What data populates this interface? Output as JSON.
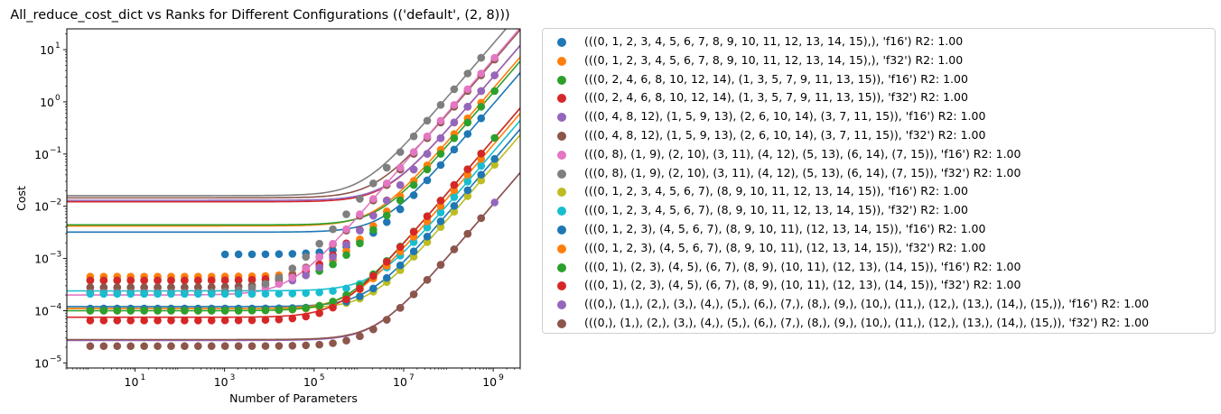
{
  "chart_data": {
    "type": "scatter",
    "title": "All_reduce_cost_dict vs Ranks for Different Configurations (('default', (2, 8)))",
    "xlabel": "Number of Parameters",
    "ylabel": "Cost",
    "xscale": "log",
    "yscale": "log",
    "xlim": [
      0.3,
      4000000000
    ],
    "ylim": [
      8e-06,
      25
    ],
    "x_ticks": [
      {
        "value": 10,
        "base": "10",
        "exp": "1"
      },
      {
        "value": 1000,
        "base": "10",
        "exp": "3"
      },
      {
        "value": 100000,
        "base": "10",
        "exp": "5"
      },
      {
        "value": 10000000,
        "base": "10",
        "exp": "7"
      },
      {
        "value": 1000000000,
        "base": "10",
        "exp": "9"
      }
    ],
    "y_ticks": [
      {
        "value": 1e-05,
        "base": "10",
        "exp": "−5"
      },
      {
        "value": 0.0001,
        "base": "10",
        "exp": "−4"
      },
      {
        "value": 0.001,
        "base": "10",
        "exp": "−3"
      },
      {
        "value": 0.01,
        "base": "10",
        "exp": "−2"
      },
      {
        "value": 0.1,
        "base": "10",
        "exp": "−1"
      },
      {
        "value": 1,
        "base": "10",
        "exp": "0"
      },
      {
        "value": 10,
        "base": "10",
        "exp": "1"
      }
    ],
    "grid": false,
    "legend_position": "outside-right",
    "series": [
      {
        "name": "(((0, 1, 2, 3, 4, 5, 6, 7, 8, 9, 10, 11, 12, 13, 14, 15),), 'f16') R2: 1.00",
        "color": "#1f77b4",
        "x_start": 1000,
        "x_end": 1000000000,
        "floor": 0.0012,
        "slope_value": 0.9,
        "fit_floor": 0.0032,
        "fit_slope": 0.9
      },
      {
        "name": "(((0, 1, 2, 3, 4, 5, 6, 7, 8, 9, 10, 11, 12, 13, 14, 15),), 'f32') R2: 1.00",
        "color": "#ff7f0e",
        "x_start": 1,
        "x_end": 1000000000,
        "floor": 0.00045,
        "slope_value": 1.8,
        "fit_floor": 0.0042,
        "fit_slope": 1.8
      },
      {
        "name": "(((0, 2, 4, 6, 8, 10, 12, 14), (1, 3, 5, 7, 9, 11, 13, 15)), 'f16') R2: 1.00",
        "color": "#2ca02c",
        "x_start": 1,
        "x_end": 2000000000,
        "floor": 0.00038,
        "slope_value": 1.5,
        "fit_floor": 0.0044,
        "fit_slope": 1.5
      },
      {
        "name": "(((0, 2, 4, 6, 8, 10, 12, 14), (1, 3, 5, 7, 9, 11, 13, 15)), 'f32') R2: 1.00",
        "color": "#d62728",
        "x_start": 1,
        "x_end": 2000000000,
        "floor": 0.00038,
        "slope_value": 3.0,
        "fit_floor": 0.0122,
        "fit_slope": 3.0
      },
      {
        "name": "(((0, 4, 8, 12), (1, 5, 9, 13), (2, 6, 10, 14), (3, 7, 11, 15)), 'f16') R2: 1.00",
        "color": "#9467bd",
        "x_start": 1,
        "x_end": 2000000000,
        "floor": 0.00028,
        "slope_value": 3.0,
        "fit_floor": 0.013,
        "fit_slope": 3.0
      },
      {
        "name": "(((0, 4, 8, 12), (1, 5, 9, 13), (2, 6, 10, 14), (3, 7, 11, 15)), 'f32') R2: 1.00",
        "color": "#8c564b",
        "x_start": 1,
        "x_end": 2000000000,
        "floor": 0.00028,
        "slope_value": 6.0,
        "fit_floor": 0.0145,
        "fit_slope": 6.0
      },
      {
        "name": "(((0, 8), (1, 9), (2, 10), (3, 11), (4, 12), (5, 13), (6, 14), (7, 15)), 'f16') R2: 1.00",
        "color": "#e377c2",
        "x_start": 1,
        "x_end": 2000000000,
        "floor": 0.00022,
        "slope_value": 6.5,
        "fit_floor": 0.0002,
        "fit_slope": 6.5
      },
      {
        "name": "(((0, 8), (1, 9), (2, 10), (3, 11), (4, 12), (5, 13), (6, 14), (7, 15)), 'f32') R2: 1.00",
        "color": "#7f7f7f",
        "x_start": 1,
        "x_end": 1000000000,
        "floor": 0.00022,
        "slope_value": 13.0,
        "fit_floor": 0.016,
        "fit_slope": 13.0
      },
      {
        "name": "(((0, 1, 2, 3, 4, 5, 6, 7), (8, 9, 10, 11, 12, 13, 14, 15)), 'f16') R2: 1.00",
        "color": "#bcbd22",
        "x_start": 1,
        "x_end": 2000000000,
        "floor": 0.00011,
        "slope_value": 0.058,
        "fit_floor": 0.00011,
        "fit_slope": 0.058
      },
      {
        "name": "(((0, 1, 2, 3, 4, 5, 6, 7), (8, 9, 10, 11, 12, 13, 14, 15)), 'f32') R2: 1.00",
        "color": "#17becf",
        "x_start": 1,
        "x_end": 1000000000,
        "floor": 0.00021,
        "slope_value": 0.11,
        "fit_floor": 0.00024,
        "fit_slope": 0.11
      },
      {
        "name": "(((0, 1, 2, 3), (4, 5, 6, 7), (8, 9, 10, 11), (12, 13, 14, 15)), 'f16') R2: 1.00",
        "color": "#1f77b4",
        "x_start": 1,
        "x_end": 2000000000,
        "floor": 0.00011,
        "slope_value": 0.075,
        "fit_floor": 0.00012,
        "fit_slope": 0.075
      },
      {
        "name": "(((0, 1, 2, 3), (4, 5, 6, 7), (8, 9, 10, 11), (12, 13, 14, 15)), 'f32') R2: 1.00",
        "color": "#ff7f0e",
        "x_start": 1,
        "x_end": 1000000000,
        "floor": 0.0001,
        "slope_value": 0.15,
        "fit_floor": 0.00011,
        "fit_slope": 0.15
      },
      {
        "name": "(((0, 1), (2, 3), (4, 5), (6, 7), (8, 9), (10, 11), (12, 13), (14, 15)), 'f16') R2: 1.00",
        "color": "#2ca02c",
        "x_start": 1,
        "x_end": 2000000000,
        "floor": 0.0001,
        "slope_value": 0.19,
        "fit_floor": 0.0001,
        "fit_slope": 0.19
      },
      {
        "name": "(((0, 1), (2, 3), (4, 5), (6, 7), (8, 9), (10, 11), (12, 13), (14, 15)), 'f32') R2: 1.00",
        "color": "#d62728",
        "x_start": 1,
        "x_end": 1000000000,
        "floor": 6.5e-05,
        "slope_value": 0.19,
        "fit_floor": 7.5e-05,
        "fit_slope": 0.19
      },
      {
        "name": "(((0,), (1,), (2,), (3,), (4,), (5,), (6,), (7,), (8,), (9,), (10,), (11,), (12,), (13,), (14,), (15,)), 'f16') R2: 1.00",
        "color": "#9467bd",
        "x_start": 1000000,
        "x_end": 2000000000,
        "floor": 2.1e-05,
        "slope_value": 0.011,
        "fit_floor": 2.7e-05,
        "fit_slope": 0.011
      },
      {
        "name": "(((0,), (1,), (2,), (3,), (4,), (5,), (6,), (7,), (8,), (9,), (10,), (11,), (12,), (13,), (14,), (15,)), 'f32') R2: 1.00",
        "color": "#8c564b",
        "x_start": 1,
        "x_end": 1000000000,
        "floor": 2.1e-05,
        "slope_value": 0.011,
        "fit_floor": 2.8e-05,
        "fit_slope": 0.011
      }
    ]
  }
}
